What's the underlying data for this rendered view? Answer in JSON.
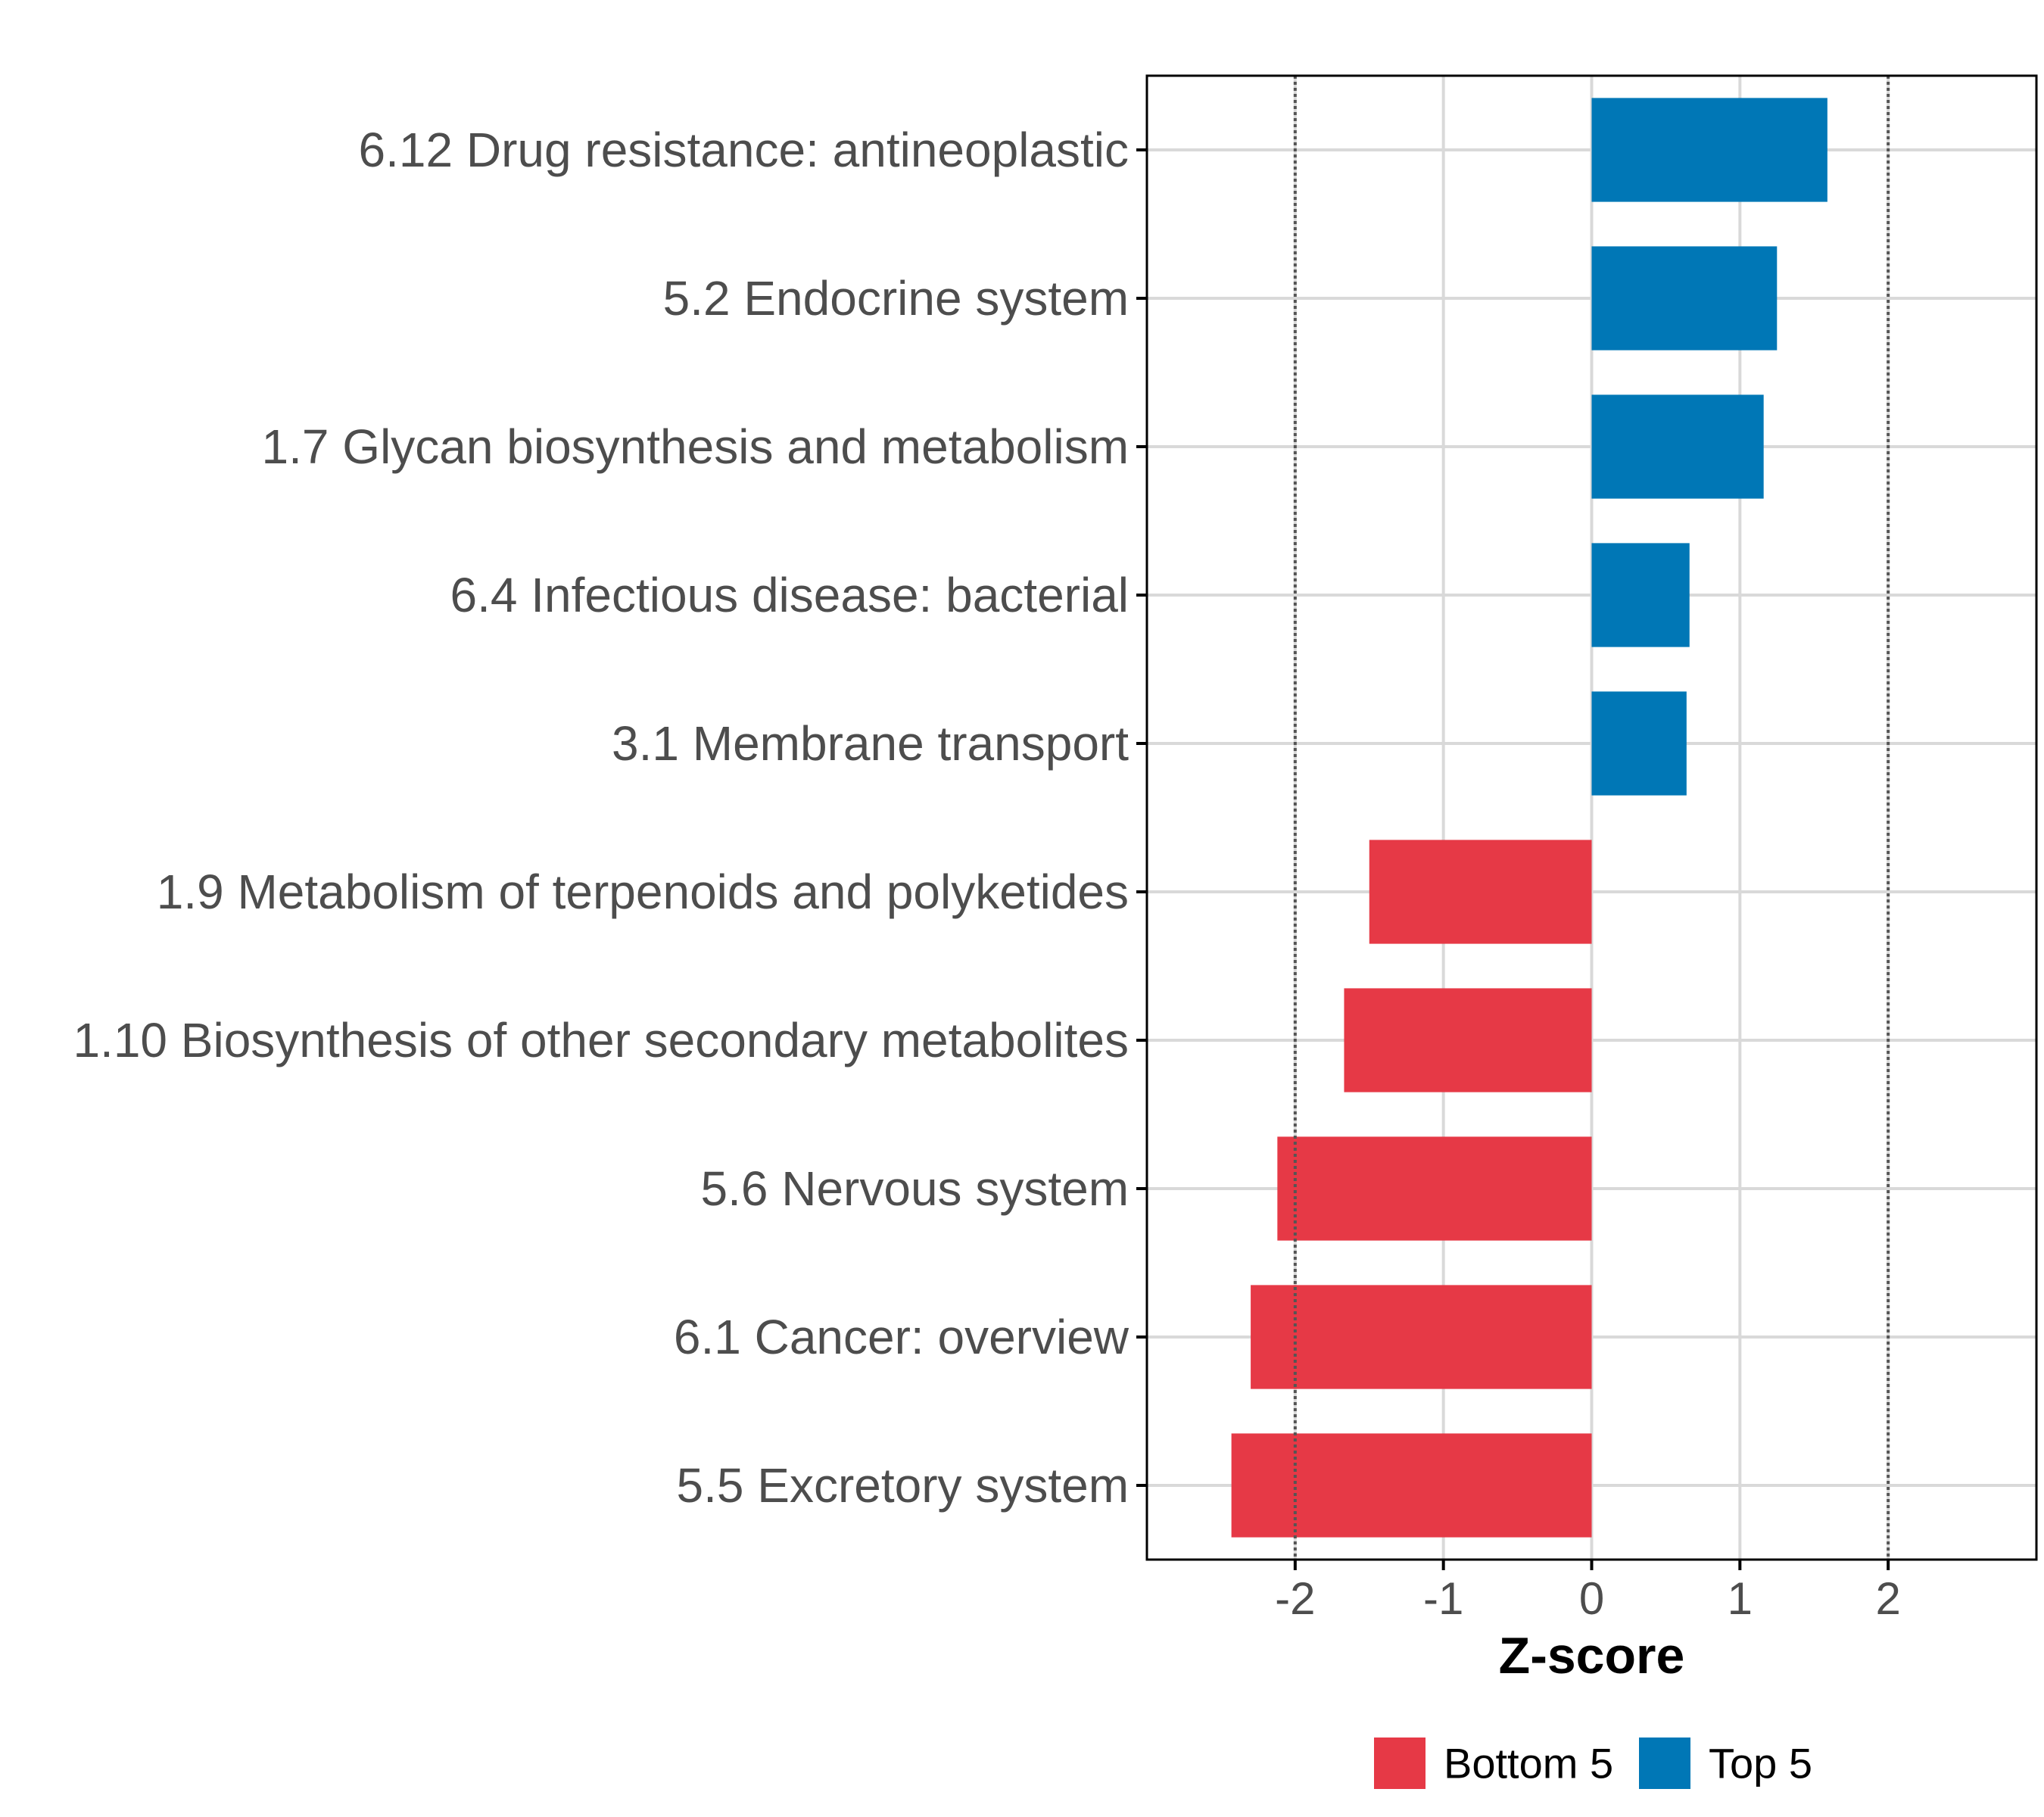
{
  "chart_data": {
    "type": "bar",
    "orientation": "horizontal",
    "categories": [
      "6.12 Drug resistance: antineoplastic",
      "5.2 Endocrine system",
      "1.7 Glycan biosynthesis and metabolism",
      "6.4 Infectious disease: bacterial",
      "3.1 Membrane transport",
      "1.9 Metabolism of terpenoids and polyketides",
      "1.10 Biosynthesis of other secondary metabolites",
      "5.6 Nervous system",
      "6.1 Cancer: overview",
      "5.5 Excretory system"
    ],
    "values": [
      1.59,
      1.25,
      1.16,
      0.66,
      0.64,
      -1.5,
      -1.67,
      -2.12,
      -2.3,
      -2.43
    ],
    "groups": [
      "Top 5",
      "Top 5",
      "Top 5",
      "Top 5",
      "Top 5",
      "Bottom 5",
      "Bottom 5",
      "Bottom 5",
      "Bottom 5",
      "Bottom 5"
    ],
    "xlabel": "Z-score",
    "xlim": [
      -3.0,
      3.0
    ],
    "xticks": [
      -2,
      -1,
      0,
      1,
      2
    ],
    "tick_labels": [
      "-2",
      "-1",
      "0",
      "1",
      "2"
    ],
    "reference_lines": [
      -2,
      2
    ],
    "grid": true,
    "legend": {
      "position": "bottom",
      "items": [
        {
          "label": "Bottom 5",
          "color": "#E63946"
        },
        {
          "label": "Top 5",
          "color": "#0077B6"
        }
      ]
    }
  },
  "colors": {
    "Top 5": "#0077B6",
    "Bottom 5": "#E63946",
    "grid": "#D9D9D9",
    "reference_line": "#555555"
  }
}
